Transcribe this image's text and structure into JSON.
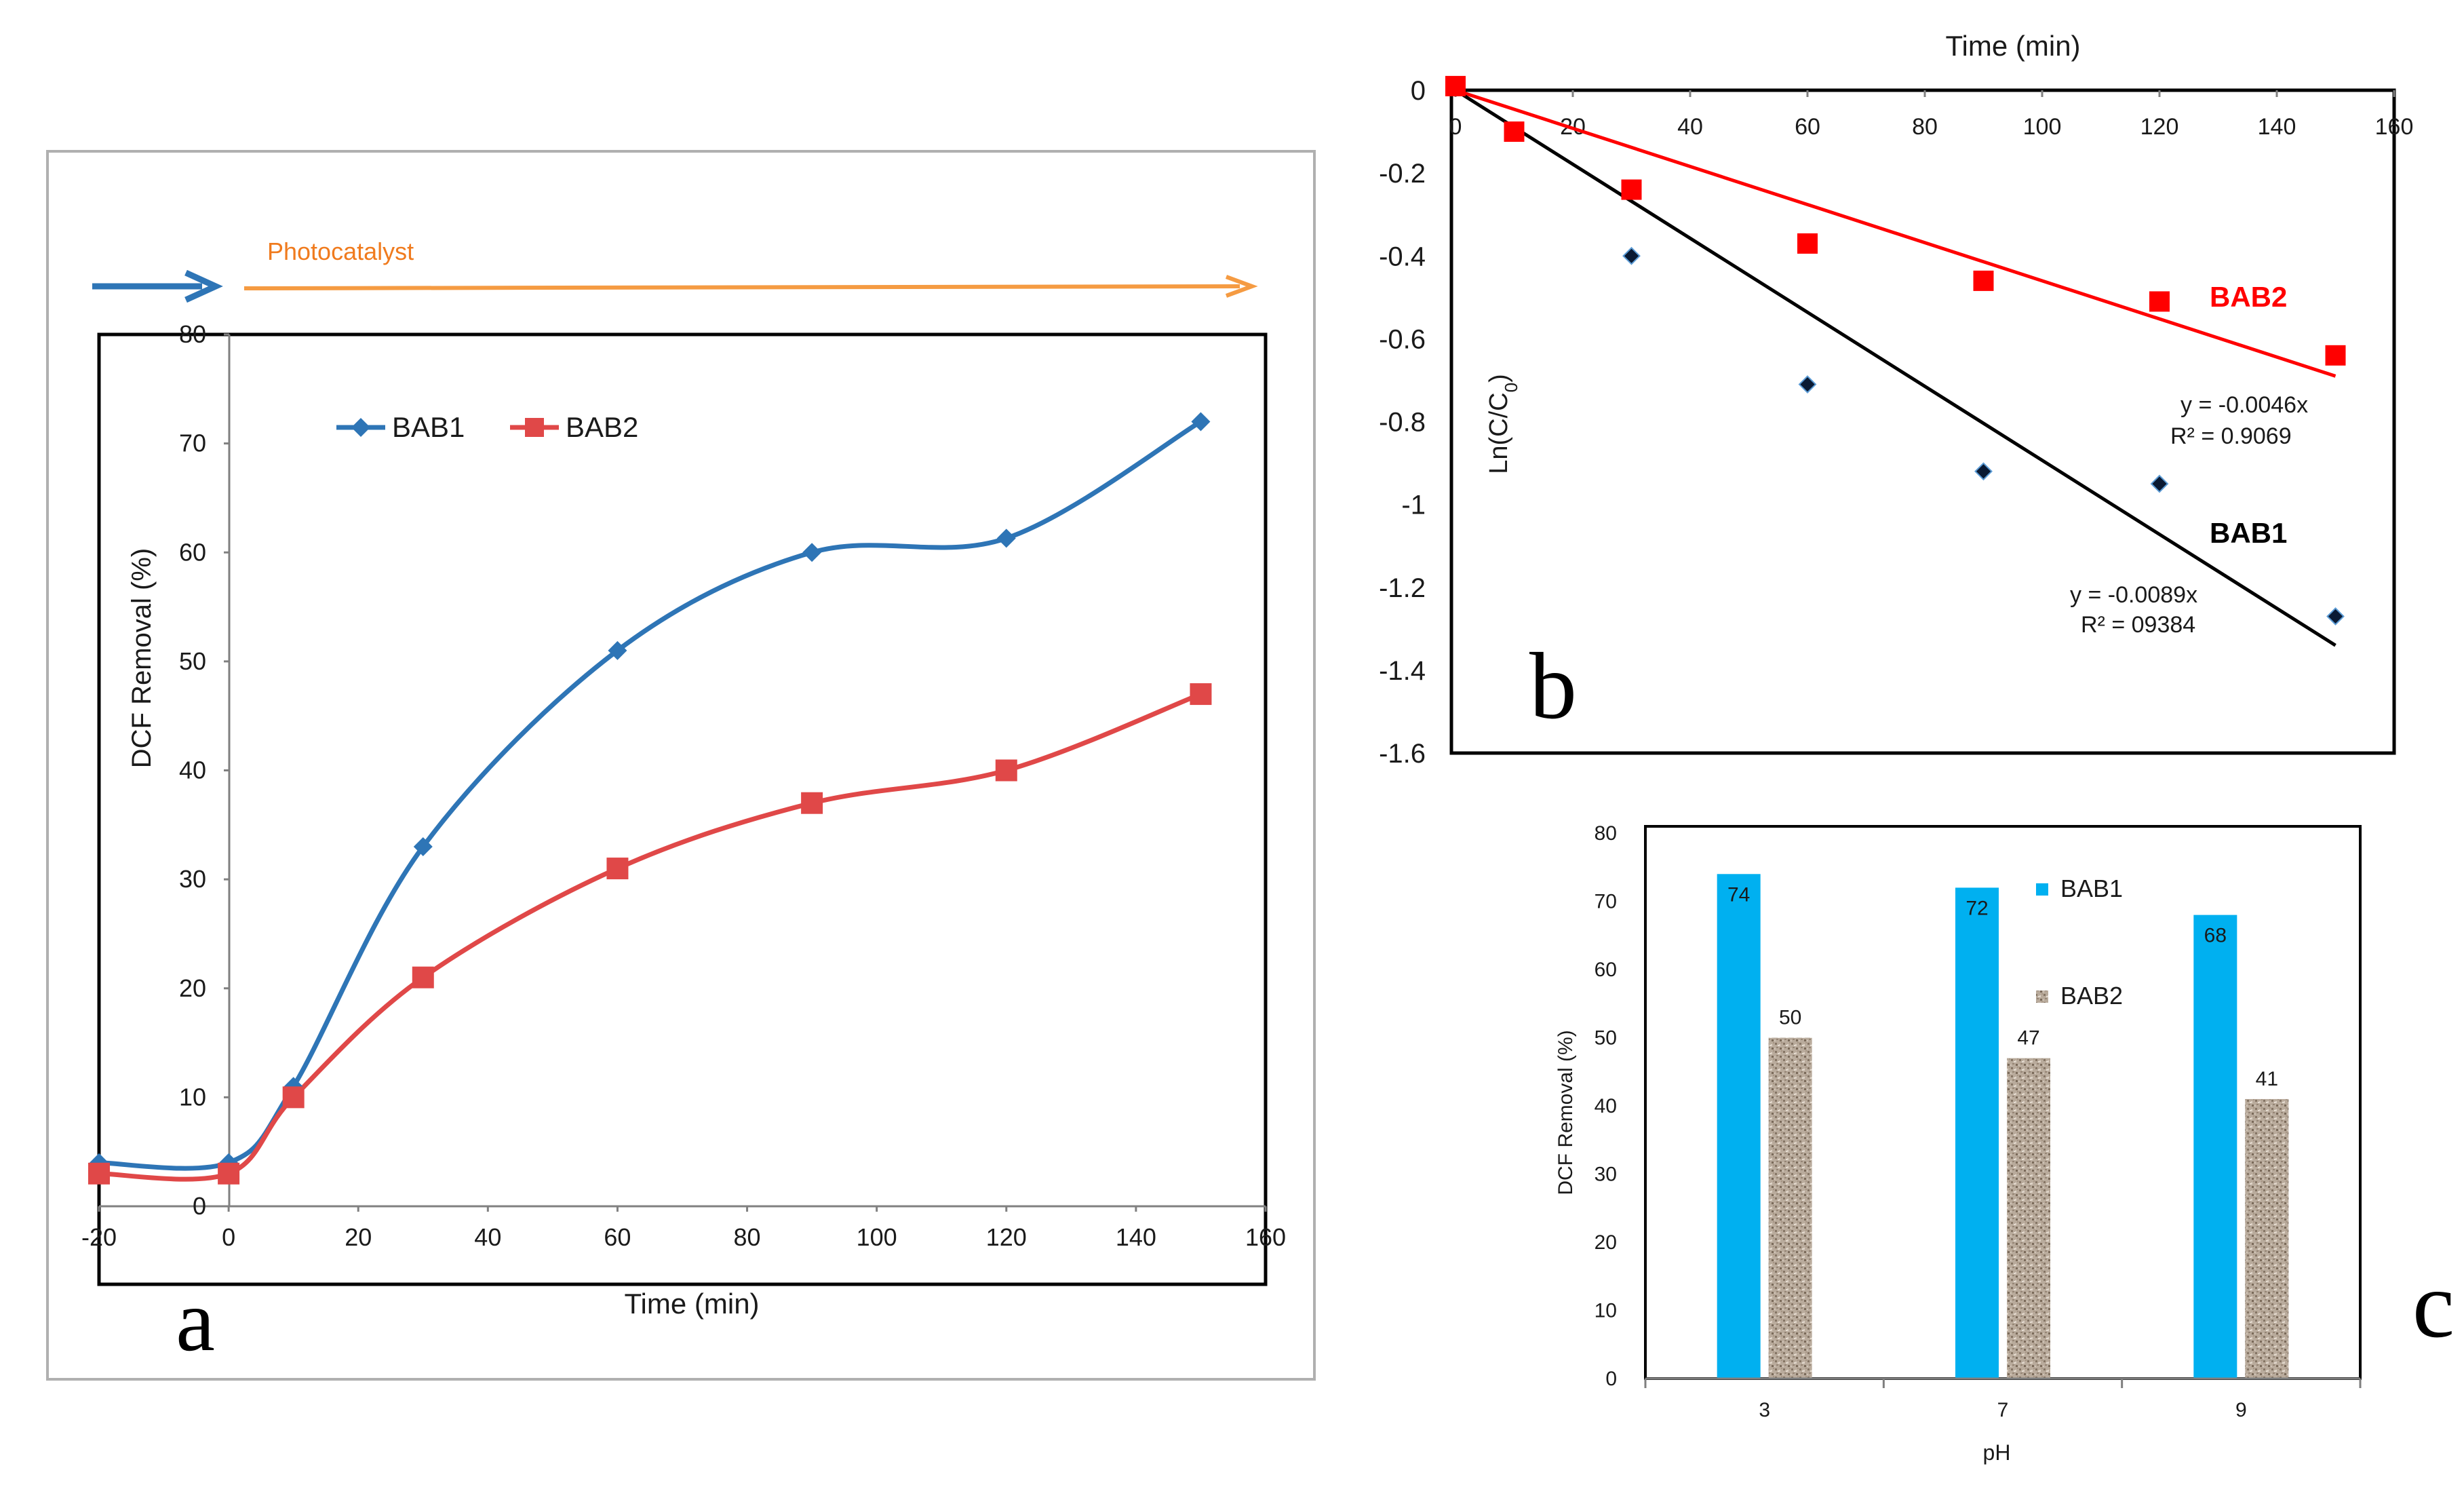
{
  "chart_data": [
    {
      "panel_label": "a",
      "type": "line",
      "title": "",
      "xlabel": "Time (min)",
      "ylabel": "DCF Removal (%)",
      "annotation": "Photocatalyst",
      "xlim": [
        -20,
        160
      ],
      "ylim": [
        0,
        80
      ],
      "xticks": [
        -20,
        0,
        20,
        40,
        60,
        80,
        100,
        120,
        140,
        160
      ],
      "yticks": [
        0,
        10,
        20,
        30,
        40,
        50,
        60,
        70,
        80
      ],
      "legend_position": "top-left",
      "x": [
        -20,
        0,
        10,
        30,
        60,
        90,
        120,
        150
      ],
      "series": [
        {
          "name": "BAB1",
          "color": "#2e75b6",
          "marker": "diamond",
          "values": [
            4,
            4,
            11,
            33,
            51,
            60,
            61.3,
            72
          ]
        },
        {
          "name": "BAB2",
          "color": "#e04848",
          "marker": "square",
          "values": [
            3,
            3,
            10,
            21,
            31,
            37,
            40,
            47
          ]
        }
      ]
    },
    {
      "panel_label": "b",
      "type": "scatter",
      "title": "",
      "xlabel": "Time (min)",
      "ylabel_parts": [
        "Ln(C/C",
        "0",
        ")"
      ],
      "xlim": [
        0,
        160
      ],
      "ylim": [
        -1.6,
        0
      ],
      "xticks": [
        0,
        20,
        40,
        60,
        80,
        100,
        120,
        140,
        160
      ],
      "yticks": [
        0,
        -0.2,
        -0.4,
        -0.6,
        -0.8,
        -1,
        -1.2,
        -1.4,
        -1.6
      ],
      "ytick_labels": [
        "0",
        "-0.2",
        "-0.4",
        "-0.6",
        "-0.8",
        "-1",
        "-1.2",
        "-1.4",
        "-1.6"
      ],
      "x": [
        0,
        10,
        30,
        60,
        90,
        120,
        150
      ],
      "series": [
        {
          "name": "BAB2",
          "color": "#ff0000",
          "marker": "square",
          "values": [
            0.01,
            -0.1,
            -0.24,
            -0.37,
            -0.46,
            -0.51,
            -0.64
          ],
          "trend": {
            "x": [
              0,
              150
            ],
            "y": [
              0,
              -0.69
            ],
            "color": "#ff0000"
          },
          "equation": "y = -0.0046x",
          "r2": "R² = 0.9069"
        },
        {
          "name": "BAB1",
          "color": "#0a1a33",
          "marker": "diamond",
          "values": [
            0.01,
            -0.1,
            -0.4,
            -0.71,
            -0.92,
            -0.95,
            -1.27
          ],
          "trend": {
            "x": [
              0,
              150
            ],
            "y": [
              0,
              -1.34
            ],
            "color": "#000000"
          },
          "equation": "y = -0.0089x",
          "r2": "R² = 09384"
        }
      ]
    },
    {
      "panel_label": "c",
      "type": "bar",
      "title": "",
      "xlabel": "pH",
      "ylabel": "DCF Removal (%)",
      "categories": [
        "3",
        "7",
        "9"
      ],
      "ylim": [
        0,
        80
      ],
      "yticks": [
        0,
        10,
        20,
        30,
        40,
        50,
        60,
        70,
        80
      ],
      "legend_position": "right",
      "series": [
        {
          "name": "BAB1",
          "color": "#00b0f0",
          "values": [
            74,
            72,
            68
          ],
          "labels": [
            "74",
            "72",
            "68"
          ]
        },
        {
          "name": "BAB2",
          "color": "#b8a898",
          "values": [
            50,
            47,
            41
          ],
          "labels": [
            "50",
            "47",
            "41"
          ]
        }
      ]
    }
  ]
}
